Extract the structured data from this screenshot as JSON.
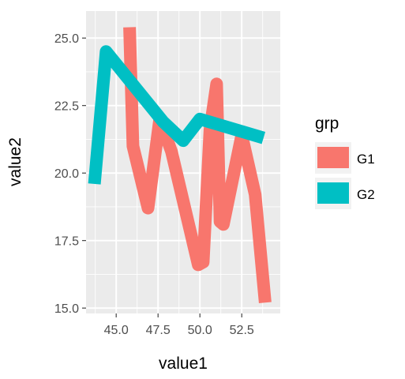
{
  "chart_data": {
    "type": "line",
    "xlabel": "value1",
    "ylabel": "value2",
    "xlim": [
      43.2,
      54.8
    ],
    "ylim": [
      14.8,
      26.0
    ],
    "x_ticks": [
      45.0,
      47.5,
      50.0,
      52.5
    ],
    "x_tick_labels": [
      "45.0",
      "47.5",
      "50.0",
      "52.5"
    ],
    "y_ticks": [
      15.0,
      17.5,
      20.0,
      22.5,
      25.0
    ],
    "y_tick_labels": [
      "15.0",
      "17.5",
      "20.0",
      "22.5",
      "25.0"
    ],
    "grid": true,
    "panel_background": "#ebebeb",
    "legend": {
      "title": "grp",
      "placement": "right"
    },
    "series": [
      {
        "name": "G1",
        "color": "#f8766d",
        "points": [
          [
            45.8,
            25.4
          ],
          [
            46.0,
            21.0
          ],
          [
            46.9,
            18.7
          ],
          [
            47.6,
            22.0
          ],
          [
            48.3,
            20.8
          ],
          [
            49.9,
            16.6
          ],
          [
            50.2,
            16.7
          ],
          [
            50.6,
            21.6
          ],
          [
            51.0,
            23.3
          ],
          [
            51.2,
            18.2
          ],
          [
            51.4,
            18.1
          ],
          [
            52.5,
            21.4
          ],
          [
            53.3,
            19.2
          ],
          [
            53.9,
            15.2
          ]
        ]
      },
      {
        "name": "G2",
        "color": "#00bfc4",
        "points": [
          [
            43.7,
            19.6
          ],
          [
            44.4,
            24.5
          ],
          [
            47.8,
            21.9
          ],
          [
            49.0,
            21.2
          ],
          [
            50.0,
            22.0
          ],
          [
            53.8,
            21.3
          ]
        ]
      }
    ]
  }
}
